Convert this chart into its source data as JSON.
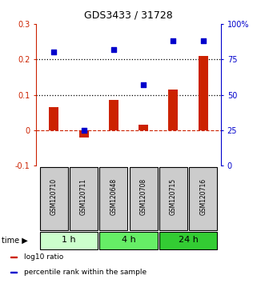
{
  "title": "GDS3433 / 31728",
  "samples": [
    "GSM120710",
    "GSM120711",
    "GSM120648",
    "GSM120708",
    "GSM120715",
    "GSM120716"
  ],
  "log10_ratio": [
    0.065,
    -0.02,
    0.085,
    0.015,
    0.115,
    0.21
  ],
  "percentile_rank": [
    80,
    25,
    82,
    57,
    88,
    88
  ],
  "left_ylim": [
    -0.1,
    0.3
  ],
  "right_ylim": [
    0,
    100
  ],
  "left_yticks": [
    -0.1,
    0.0,
    0.1,
    0.2,
    0.3
  ],
  "left_yticklabels": [
    "-0.1",
    "0",
    "0.1",
    "0.2",
    "0.3"
  ],
  "right_yticks": [
    0,
    25,
    50,
    75,
    100
  ],
  "right_yticklabels": [
    "0",
    "25",
    "50",
    "75",
    "100%"
  ],
  "hlines_dotted": [
    0.1,
    0.2
  ],
  "hline_dashed_red": 0.0,
  "bar_color": "#cc2200",
  "dot_color": "#0000cc",
  "time_groups": [
    {
      "label": "1 h",
      "cols": [
        0,
        1
      ],
      "color": "#ccffcc"
    },
    {
      "label": "4 h",
      "cols": [
        2,
        3
      ],
      "color": "#66ee66"
    },
    {
      "label": "24 h",
      "cols": [
        4,
        5
      ],
      "color": "#33cc33"
    }
  ],
  "legend_items": [
    {
      "color": "#cc2200",
      "label": "log10 ratio"
    },
    {
      "color": "#0000cc",
      "label": "percentile rank within the sample"
    }
  ],
  "sample_bg_color": "#cccccc",
  "plot_bg": "#ffffff"
}
